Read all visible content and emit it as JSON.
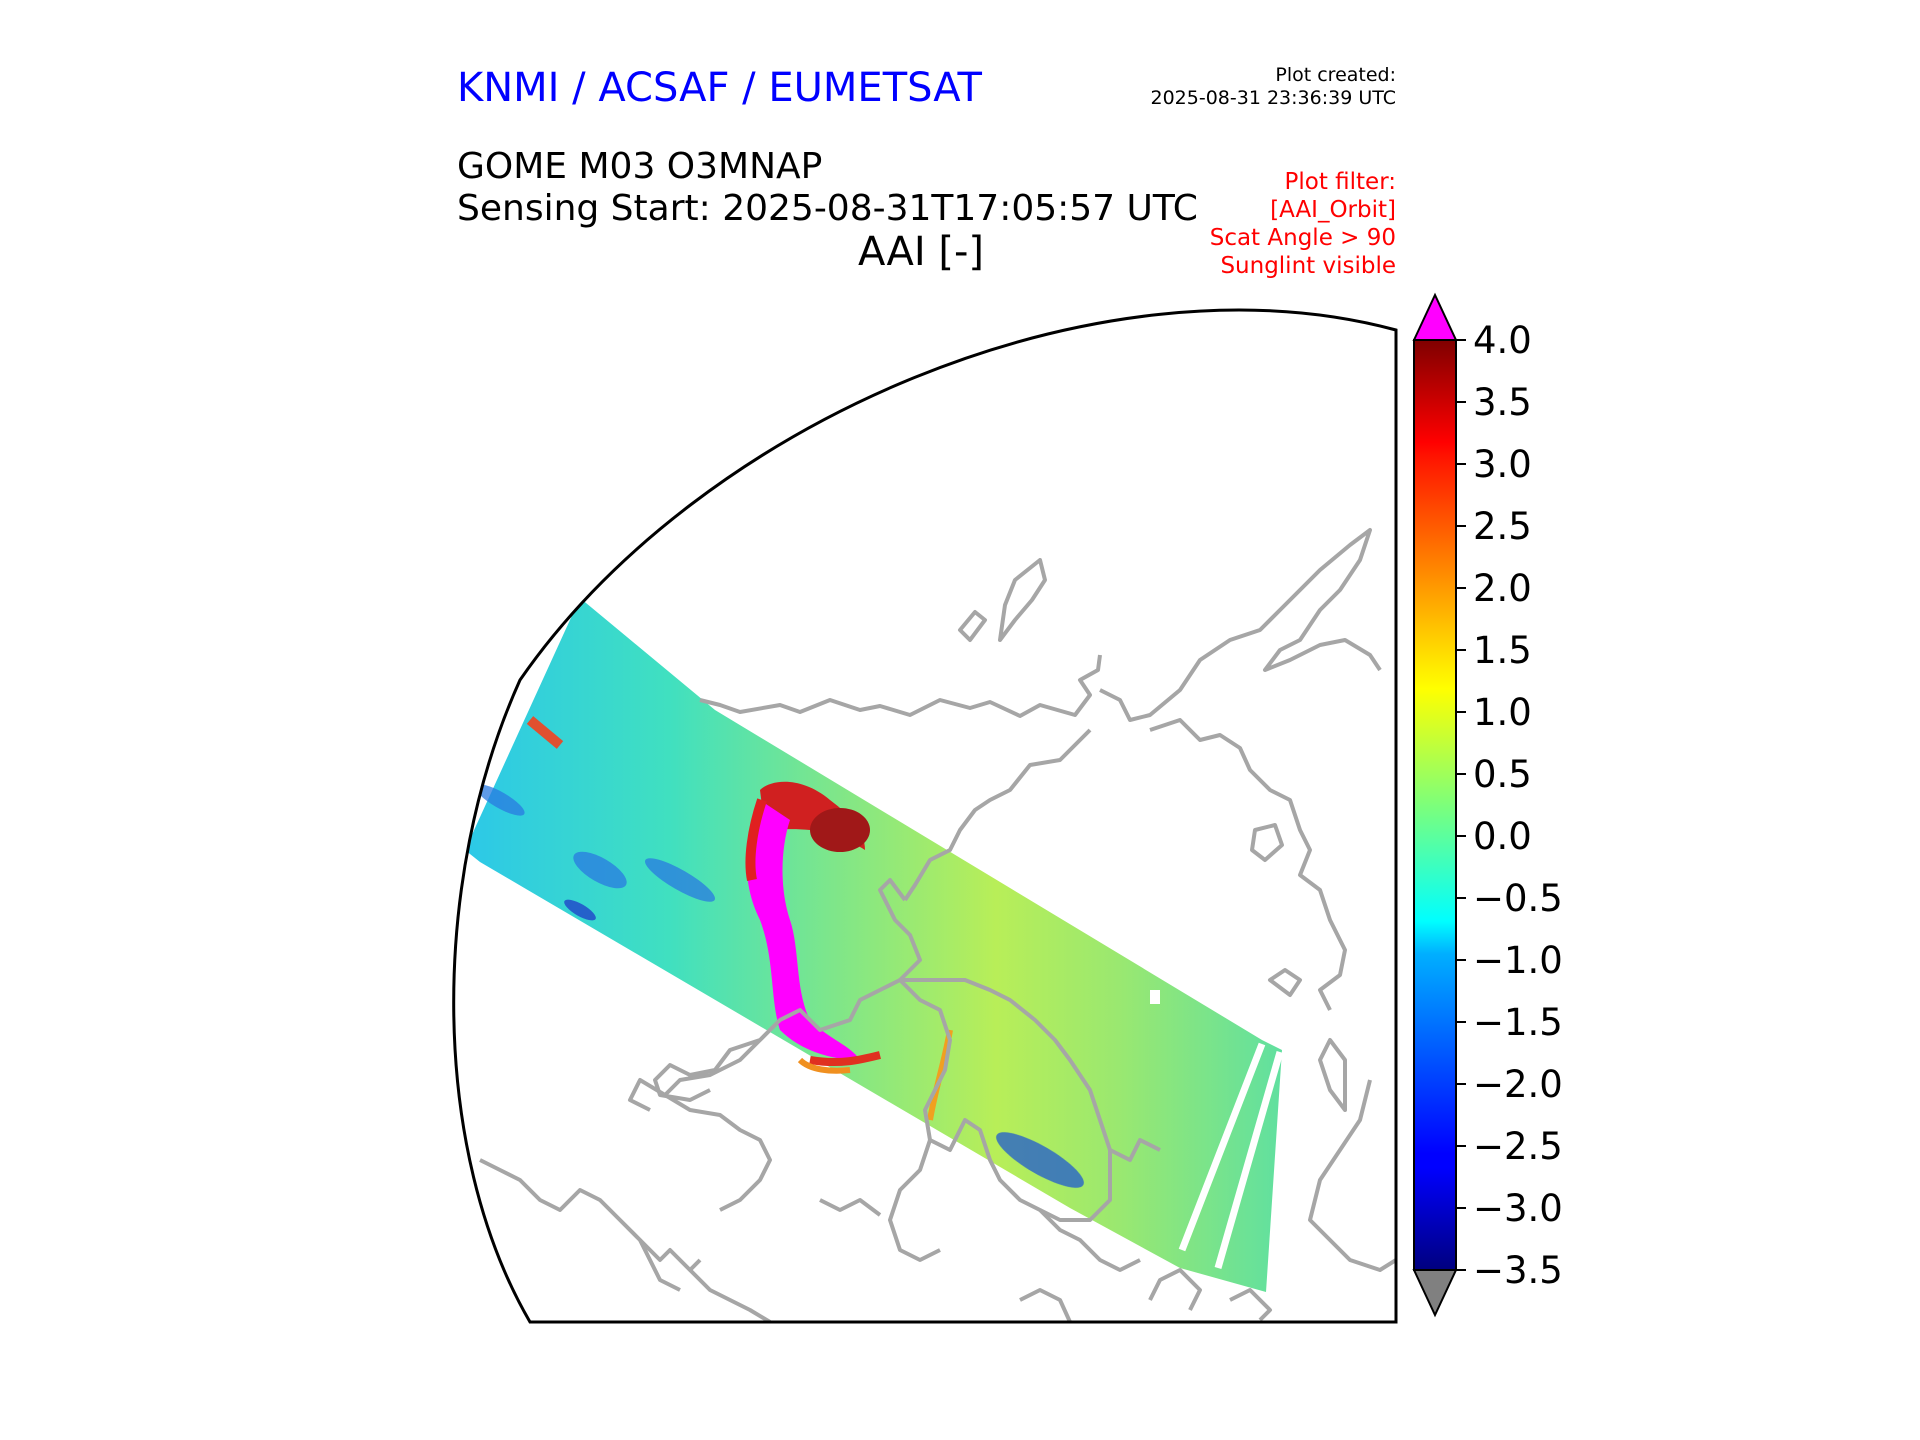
{
  "header": {
    "organization": "KNMI / ACSAF / EUMETSAT",
    "plot_created_label": "Plot created:",
    "plot_created_time": "2025-08-31 23:36:39 UTC",
    "product": "GOME M03 O3MNAP",
    "sensing_start": "Sensing Start: 2025-08-31T17:05:57 UTC",
    "variable": "AAI [-]"
  },
  "filters": {
    "title": "Plot filter:",
    "items": [
      "[AAI_Orbit]",
      "Scat Angle > 90",
      "Sunglint visible"
    ]
  },
  "colorbar": {
    "ticks": [
      "4.0",
      "3.5",
      "3.0",
      "2.5",
      "2.0",
      "1.5",
      "1.0",
      "0.5",
      "0.0",
      "−0.5",
      "−1.0",
      "−1.5",
      "−2.0",
      "−2.5",
      "−3.0",
      "−3.5"
    ],
    "min": -3.5,
    "max": 4.0,
    "over_color": "#ff00ff",
    "under_color": "#808080",
    "colormap": "jet"
  },
  "map": {
    "projection": "north polar stereographic",
    "coastline_color": "#a0a0a0",
    "swath_colormap": "jet",
    "swath_dominant_aai": -0.8,
    "plume_aai": 4.0
  }
}
